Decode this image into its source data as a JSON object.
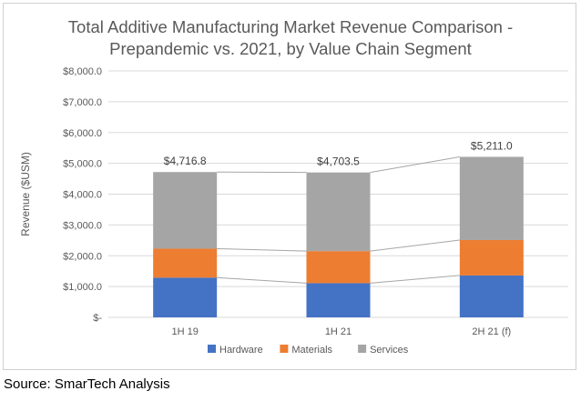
{
  "source": "Source: SmarTech Analysis",
  "colors": {
    "Hardware": "#4472c4",
    "Materials": "#ed7d31",
    "Services": "#a5a5a5",
    "connector": "#a6a6a6",
    "gridline": "#d9d9d9",
    "text": "#595959"
  },
  "chart_data": {
    "type": "bar",
    "stacked": true,
    "title": "Total Additive Manufacturing Market Revenue Comparison -\nPrepandemic vs. 2021, by Value Chain Segment",
    "xlabel": "",
    "ylabel": "Revenue ($USM)",
    "ylim": [
      0,
      8000
    ],
    "y_ticks": [
      0,
      1000,
      2000,
      3000,
      4000,
      5000,
      6000,
      7000,
      8000
    ],
    "y_tick_labels": [
      "$-",
      "$1,000.0",
      "$2,000.0",
      "$3,000.0",
      "$4,000.0",
      "$5,000.0",
      "$6,000.0",
      "$7,000.0",
      "$8,000.0"
    ],
    "categories": [
      "1H 19",
      "1H 21",
      "2H 21 (f)"
    ],
    "series": [
      {
        "name": "Hardware",
        "values": [
          1290,
          1110,
          1360
        ]
      },
      {
        "name": "Materials",
        "values": [
          940,
          1040,
          1150
        ]
      },
      {
        "name": "Services",
        "values": [
          2486.8,
          2553.5,
          2701.0
        ]
      }
    ],
    "totals": [
      4716.8,
      4703.5,
      5211.0
    ],
    "total_labels": [
      "$4,716.8",
      "$4,703.5",
      "$5,211.0"
    ],
    "legend_position": "bottom",
    "grid": true
  }
}
